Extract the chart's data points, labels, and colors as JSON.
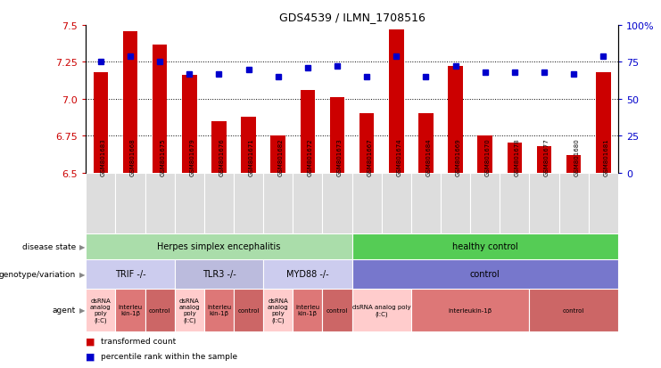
{
  "title": "GDS4539 / ILMN_1708516",
  "samples": [
    "GSM801683",
    "GSM801668",
    "GSM801675",
    "GSM801679",
    "GSM801676",
    "GSM801671",
    "GSM801682",
    "GSM801672",
    "GSM801673",
    "GSM801667",
    "GSM801674",
    "GSM801684",
    "GSM801669",
    "GSM801670",
    "GSM801678",
    "GSM801677",
    "GSM801680",
    "GSM801681"
  ],
  "red_values": [
    7.18,
    7.46,
    7.37,
    7.16,
    6.85,
    6.88,
    6.75,
    7.06,
    7.01,
    6.9,
    7.47,
    6.9,
    7.22,
    6.75,
    6.7,
    6.68,
    6.62,
    7.18
  ],
  "blue_values": [
    75,
    79,
    75,
    67,
    67,
    70,
    65,
    71,
    72,
    65,
    79,
    65,
    72,
    68,
    68,
    68,
    67,
    79
  ],
  "ylim_left": [
    6.5,
    7.5
  ],
  "ylim_right": [
    0,
    100
  ],
  "yticks_left": [
    6.5,
    6.75,
    7.0,
    7.25,
    7.5
  ],
  "yticks_right": [
    0,
    25,
    50,
    75,
    100
  ],
  "grid_lines": [
    6.75,
    7.0,
    7.25
  ],
  "disease_state_boxes": [
    {
      "label": "Herpes simplex encephalitis",
      "start": 0,
      "end": 9,
      "color": "#aaddaa"
    },
    {
      "label": "healthy control",
      "start": 9,
      "end": 18,
      "color": "#55cc55"
    }
  ],
  "genotype_boxes": [
    {
      "label": "TRIF -/-",
      "start": 0,
      "end": 3,
      "color": "#ccccee"
    },
    {
      "label": "TLR3 -/-",
      "start": 3,
      "end": 6,
      "color": "#bbbbdd"
    },
    {
      "label": "MYD88 -/-",
      "start": 6,
      "end": 9,
      "color": "#ccccee"
    },
    {
      "label": "control",
      "start": 9,
      "end": 18,
      "color": "#7777cc"
    }
  ],
  "agent_boxes": [
    {
      "label": "dsRNA\nanalog\npoly\n(I:C)",
      "start": 0,
      "end": 1,
      "color": "#ffcccc"
    },
    {
      "label": "interleu\nkin-1β",
      "start": 1,
      "end": 2,
      "color": "#dd7777"
    },
    {
      "label": "control",
      "start": 2,
      "end": 3,
      "color": "#cc6666"
    },
    {
      "label": "dsRNA\nanalog\npoly\n(I:C)",
      "start": 3,
      "end": 4,
      "color": "#ffcccc"
    },
    {
      "label": "interleu\nkin-1β",
      "start": 4,
      "end": 5,
      "color": "#dd7777"
    },
    {
      "label": "control",
      "start": 5,
      "end": 6,
      "color": "#cc6666"
    },
    {
      "label": "dsRNA\nanalog\npoly\n(I:C)",
      "start": 6,
      "end": 7,
      "color": "#ffcccc"
    },
    {
      "label": "interleu\nkin-1β",
      "start": 7,
      "end": 8,
      "color": "#dd7777"
    },
    {
      "label": "control",
      "start": 8,
      "end": 9,
      "color": "#cc6666"
    },
    {
      "label": "dsRNA analog poly\n(I:C)",
      "start": 9,
      "end": 11,
      "color": "#ffcccc"
    },
    {
      "label": "interleukin-1β",
      "start": 11,
      "end": 15,
      "color": "#dd7777"
    },
    {
      "label": "control",
      "start": 15,
      "end": 18,
      "color": "#cc6666"
    }
  ],
  "bar_color": "#cc0000",
  "dot_color": "#0000cc",
  "left_tick_color": "#cc0000",
  "right_tick_color": "#0000cc",
  "legend_red": "transformed count",
  "legend_blue": "percentile rank within the sample",
  "xtick_bg": "#dddddd",
  "row_label_color": "#888888",
  "row_labels": [
    "disease state",
    "genotype/variation",
    "agent"
  ]
}
